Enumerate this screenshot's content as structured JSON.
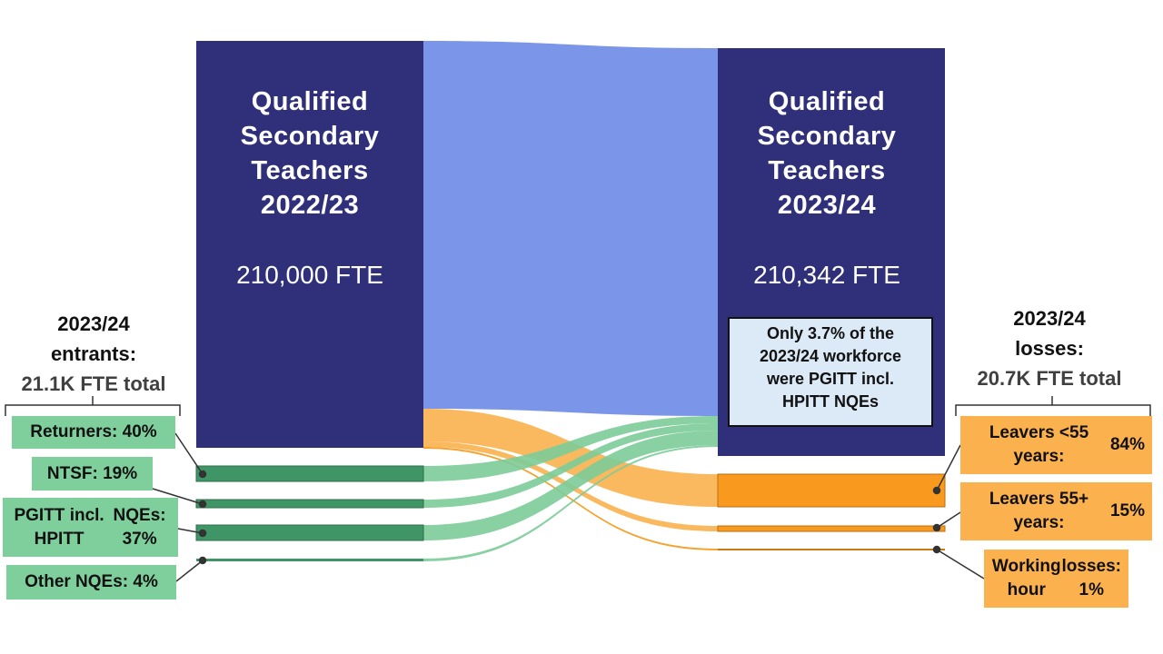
{
  "left_node": {
    "title": [
      "Qualified",
      "Secondary",
      "Teachers",
      "2022/23"
    ],
    "fte": "210,000 FTE"
  },
  "right_node": {
    "title": [
      "Qualified",
      "Secondary",
      "Teachers",
      "2023/24"
    ],
    "fte": "210,342 FTE"
  },
  "entrants": {
    "heading": [
      "2023/24",
      "entrants:"
    ],
    "total": "21.1K FTE total",
    "items": [
      {
        "label": "Returners: 40%",
        "share": 40
      },
      {
        "label": "NTSF: 19%",
        "share": 19
      },
      {
        "label": [
          "PGITT incl. HPITT",
          "NQEs: 37%"
        ],
        "share": 37
      },
      {
        "label": "Other NQEs: 4%",
        "share": 4
      }
    ]
  },
  "losses": {
    "heading": [
      "2023/24",
      "losses:"
    ],
    "total": "20.7K FTE total",
    "items": [
      {
        "label": [
          "Leavers <55 years:",
          "84%"
        ],
        "share": 84
      },
      {
        "label": [
          "Leavers 55+ years:",
          "15%"
        ],
        "share": 15
      },
      {
        "label": [
          "Working hour",
          "losses: 1%"
        ],
        "share": 1
      }
    ]
  },
  "note": [
    "Only 3.7% of the",
    "2023/24 workforce",
    "were PGITT incl.",
    "HPITT NQEs"
  ],
  "colors": {
    "node": "#30307a",
    "stay_flow": "#7b96e8",
    "entrant_bar": "#3f9566",
    "entrant_flow": "#7ccc99",
    "loss_bar": "#f99a1f",
    "loss_flow": "#fbb14e",
    "leader": "#333333"
  }
}
